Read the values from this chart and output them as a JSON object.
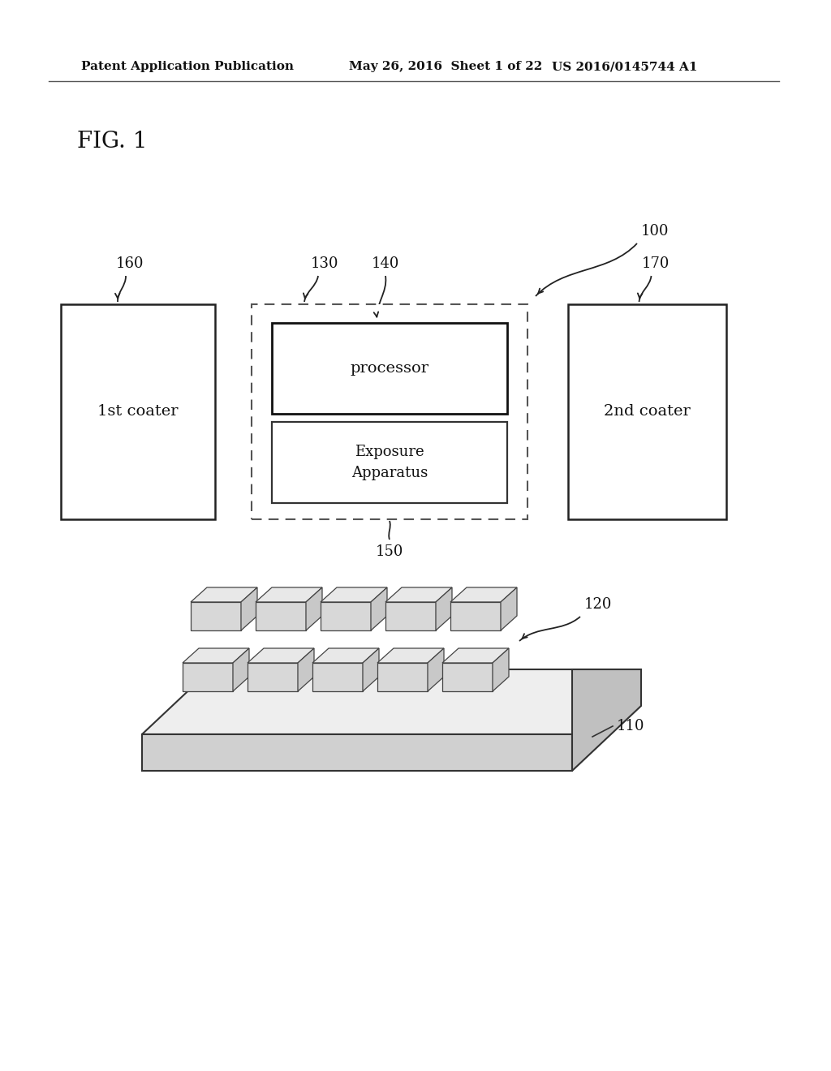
{
  "bg_color": "#ffffff",
  "header_left": "Patent Application Publication",
  "header_mid": "May 26, 2016  Sheet 1 of 22",
  "header_right": "US 2016/0145744 A1",
  "fig_label": "FIG. 1",
  "label_100": "100",
  "label_160": "160",
  "label_130": "130",
  "label_140": "140",
  "label_170": "170",
  "label_150": "150",
  "label_120": "120",
  "label_110": "110",
  "text_1st_coater": "1st coater",
  "text_2nd_coater": "2nd coater",
  "text_processor": "processor",
  "text_exposure": "Exposure\nApparatus"
}
